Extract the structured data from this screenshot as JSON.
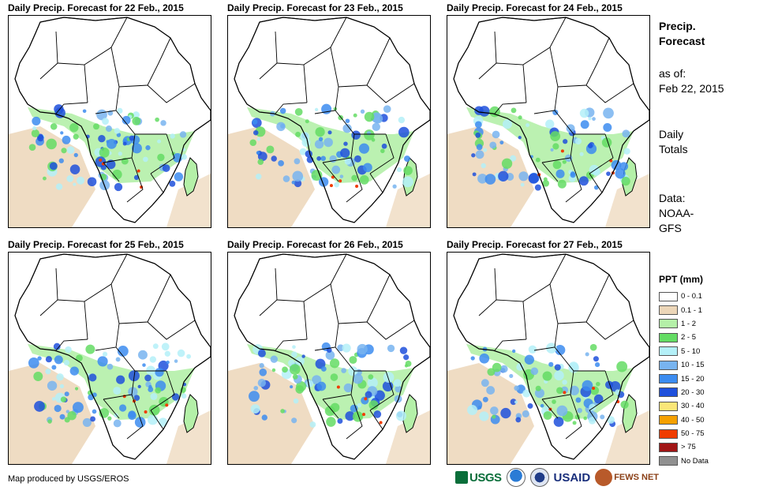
{
  "panels": [
    {
      "title": "Daily Precip. Forecast for 22 Feb., 2015"
    },
    {
      "title": "Daily Precip. Forecast for 23 Feb., 2015"
    },
    {
      "title": "Daily Precip. Forecast for 24 Feb., 2015"
    },
    {
      "title": "Daily Precip. Forecast for 25 Feb., 2015"
    },
    {
      "title": "Daily Precip. Forecast for 26 Feb., 2015"
    },
    {
      "title": "Daily Precip. Forecast for 27 Feb., 2015"
    }
  ],
  "sidebar": {
    "title_line1": "Precip.",
    "title_line2": "Forecast",
    "asof_label": "as of:",
    "asof_date": "Feb 22, 2015",
    "totals_line1": "Daily",
    "totals_line2": "Totals",
    "data_line1": "Data:",
    "data_line2": "NOAA-",
    "data_line3": "GFS"
  },
  "legend": {
    "title": "PPT (mm)",
    "items": [
      {
        "label": "0 - 0.1",
        "color": "#ffffff"
      },
      {
        "label": "0.1 - 1",
        "color": "#ecd6b8"
      },
      {
        "label": "1 - 2",
        "color": "#b4f0a8"
      },
      {
        "label": "2 - 5",
        "color": "#64dc64"
      },
      {
        "label": "5 - 10",
        "color": "#b4f0f8"
      },
      {
        "label": "10 - 15",
        "color": "#78b4f0"
      },
      {
        "label": "15 - 20",
        "color": "#3c8cf0"
      },
      {
        "label": "20 - 30",
        "color": "#1e50dc"
      },
      {
        "label": "30 - 40",
        "color": "#fae678"
      },
      {
        "label": "40 - 50",
        "color": "#f5a000"
      },
      {
        "label": "50 - 75",
        "color": "#f03c00"
      },
      {
        "label": "> 75",
        "color": "#a01414"
      },
      {
        "label": "No Data",
        "color": "#909090"
      }
    ]
  },
  "footer": {
    "credit": "Map produced by USGS/EROS",
    "logo_usgs": "USGS",
    "logo_usaid": "USAID",
    "logo_fews": "FEWS NET"
  }
}
